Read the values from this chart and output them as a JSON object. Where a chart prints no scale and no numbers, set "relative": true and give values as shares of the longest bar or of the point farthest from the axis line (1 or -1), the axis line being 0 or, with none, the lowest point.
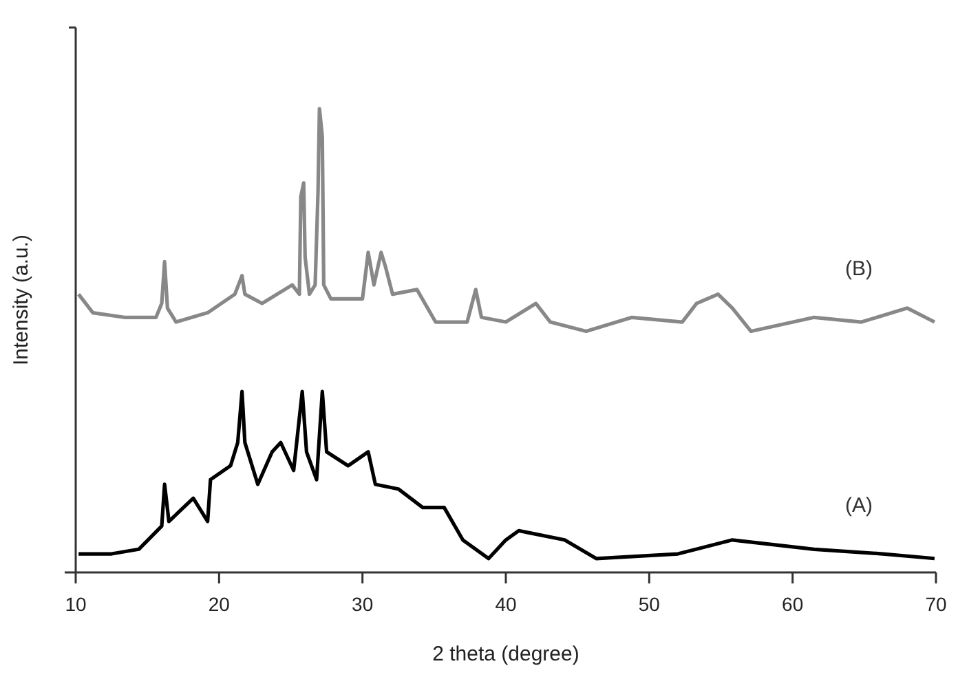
{
  "chart_data": {
    "type": "line",
    "xlabel": "2 theta (degree)",
    "ylabel": "Intensity (a.u.)",
    "relative": true,
    "xlim": [
      10,
      70
    ],
    "xticks": [
      10,
      20,
      30,
      40,
      50,
      60,
      70
    ],
    "tick_labels": "x",
    "grid": false,
    "marker": "none",
    "line_style": "solid",
    "series": [
      {
        "name": "(B)",
        "color": "#888888",
        "x": [
          10.2,
          11.2,
          13.4,
          15.6,
          16.0,
          16.2,
          16.4,
          17.0,
          19.2,
          21.1,
          21.6,
          21.8,
          23.0,
          25.1,
          25.6,
          25.7,
          25.9,
          26.0,
          26.3,
          26.7,
          26.9,
          27.0,
          27.2,
          27.3,
          27.8,
          30.0,
          30.4,
          30.8,
          31.3,
          31.6,
          32.1,
          33.8,
          35.1,
          37.3,
          37.9,
          38.3,
          40.0,
          42.1,
          43.1,
          45.6,
          48.8,
          52.3,
          53.3,
          54.8,
          55.8,
          57.1,
          61.5,
          64.8,
          68.0,
          69.9
        ],
        "values": [
          0.6,
          0.56,
          0.55,
          0.55,
          0.58,
          0.67,
          0.57,
          0.54,
          0.56,
          0.6,
          0.64,
          0.6,
          0.58,
          0.62,
          0.6,
          0.81,
          0.84,
          0.68,
          0.6,
          0.62,
          0.82,
          1,
          0.94,
          0.62,
          0.59,
          0.59,
          0.69,
          0.62,
          0.69,
          0.66,
          0.6,
          0.61,
          0.54,
          0.54,
          0.61,
          0.55,
          0.54,
          0.58,
          0.54,
          0.52,
          0.55,
          0.54,
          0.58,
          0.6,
          0.57,
          0.52,
          0.55,
          0.54,
          0.57,
          0.54
        ]
      },
      {
        "name": "(A)",
        "color": "#000000",
        "x": [
          10.2,
          12.5,
          14.4,
          16.0,
          16.2,
          16.5,
          18.2,
          19.2,
          19.4,
          20.8,
          21.3,
          21.6,
          21.8,
          22.7,
          23.7,
          24.3,
          25.2,
          25.8,
          26.1,
          26.8,
          27.2,
          27.5,
          29.0,
          30.4,
          30.9,
          32.5,
          34.2,
          35.7,
          37.0,
          38.8,
          40.0,
          40.9,
          44.1,
          46.3,
          52.0,
          55.8,
          61.5,
          66.3,
          69.9
        ],
        "values": [
          0.04,
          0.04,
          0.05,
          0.1,
          0.19,
          0.11,
          0.16,
          0.11,
          0.2,
          0.23,
          0.28,
          0.39,
          0.28,
          0.19,
          0.26,
          0.28,
          0.22,
          0.39,
          0.26,
          0.2,
          0.39,
          0.26,
          0.23,
          0.26,
          0.19,
          0.18,
          0.14,
          0.14,
          0.07,
          0.03,
          0.07,
          0.09,
          0.07,
          0.03,
          0.04,
          0.07,
          0.05,
          0.04,
          0.03
        ]
      }
    ]
  }
}
